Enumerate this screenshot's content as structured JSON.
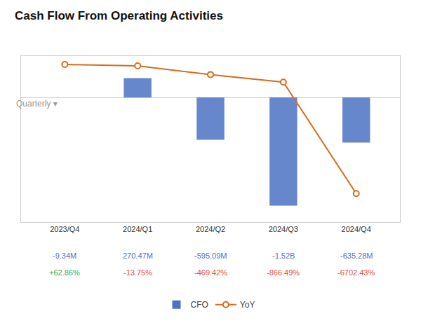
{
  "chart_data": {
    "type": "bar",
    "title": "Cash Flow From Operating Activities",
    "subtitle": "Quarterly ▾",
    "categories": [
      "2023/Q4",
      "2024/Q1",
      "2024/Q2",
      "2024/Q3",
      "2024/Q4"
    ],
    "series": [
      {
        "name": "CFO",
        "type": "bar",
        "color": "#4C72C4",
        "values": [
          null,
          270.47,
          -595.09,
          -1520.0,
          -635.28
        ],
        "value_labels": [
          "-9.34M",
          "270.47M",
          "-595.09M",
          "-1.52B",
          "-635.28M"
        ]
      },
      {
        "name": "YoY",
        "type": "line",
        "axis": "y2",
        "color": "#D96B1A",
        "marker": "circle",
        "values": [
          62.86,
          -13.75,
          -469.42,
          -866.49,
          -6702.43
        ],
        "value_labels": [
          "+62.86%",
          "-13.75%",
          "-469.42%",
          "-866.49%",
          "-6702.43%"
        ]
      }
    ],
    "ylim": [
      -1750,
      580
    ],
    "y2lim": [
      -8200,
      500
    ],
    "grid": false,
    "legend": "bottom",
    "tick_labels": "x",
    "data_labels": true
  }
}
